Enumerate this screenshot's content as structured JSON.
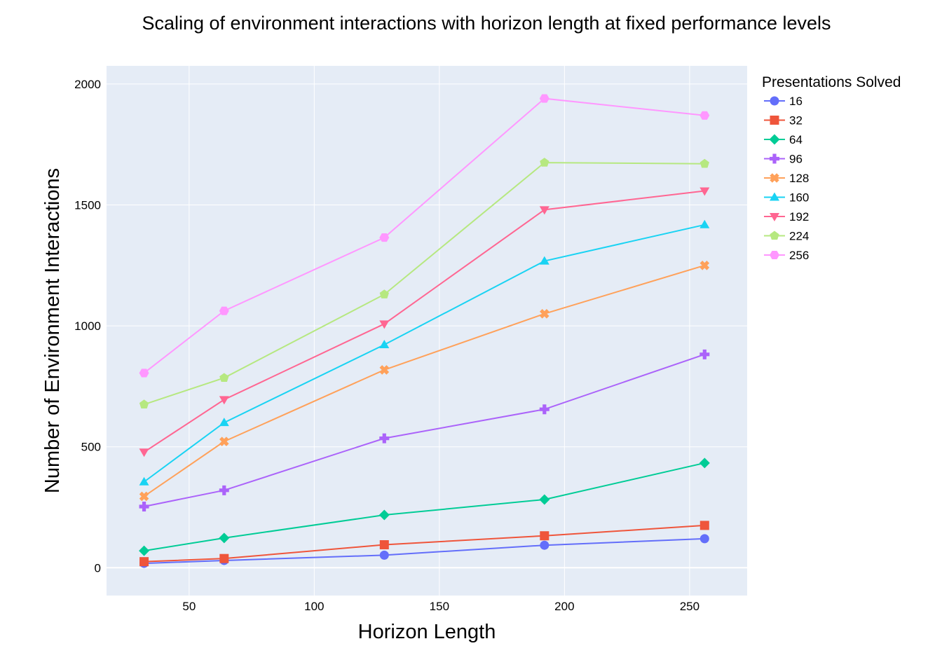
{
  "chart_data": {
    "type": "line",
    "title": "Scaling of environment interactions with horizon length at fixed performance levels",
    "xlabel": "Horizon Length",
    "ylabel": "Number of Environment Interactions",
    "xlim": [
      17,
      273
    ],
    "ylim": [
      -115,
      2075
    ],
    "xticks": [
      50,
      100,
      150,
      200,
      250
    ],
    "yticks": [
      0,
      500,
      1000,
      1500,
      2000
    ],
    "grid": true,
    "plot_bg": "#e5ecf6",
    "legend_title": "Presentations Solved",
    "legend_position": "top-right outside",
    "x": [
      32,
      64,
      128,
      192,
      256
    ],
    "series": [
      {
        "name": "16",
        "color": "#636efa",
        "marker": "circle",
        "values": [
          18,
          30,
          52,
          93,
          120
        ]
      },
      {
        "name": "32",
        "color": "#ef553b",
        "marker": "square",
        "values": [
          25,
          38,
          95,
          132,
          175
        ]
      },
      {
        "name": "64",
        "color": "#00cc96",
        "marker": "diamond",
        "values": [
          70,
          123,
          218,
          282,
          433
        ]
      },
      {
        "name": "96",
        "color": "#ab63fa",
        "marker": "cross",
        "values": [
          253,
          320,
          535,
          655,
          882
        ]
      },
      {
        "name": "128",
        "color": "#ffa15a",
        "marker": "x",
        "values": [
          295,
          522,
          818,
          1050,
          1250
        ]
      },
      {
        "name": "160",
        "color": "#19d3f3",
        "marker": "triangle-up",
        "values": [
          355,
          600,
          922,
          1268,
          1418
        ]
      },
      {
        "name": "192",
        "color": "#ff6692",
        "marker": "triangle-down",
        "values": [
          478,
          695,
          1008,
          1480,
          1558
        ]
      },
      {
        "name": "224",
        "color": "#b6e880",
        "marker": "pentagon",
        "values": [
          675,
          785,
          1130,
          1675,
          1670
        ]
      },
      {
        "name": "256",
        "color": "#ff97ff",
        "marker": "hexagon",
        "values": [
          805,
          1062,
          1365,
          1940,
          1870
        ]
      }
    ]
  }
}
